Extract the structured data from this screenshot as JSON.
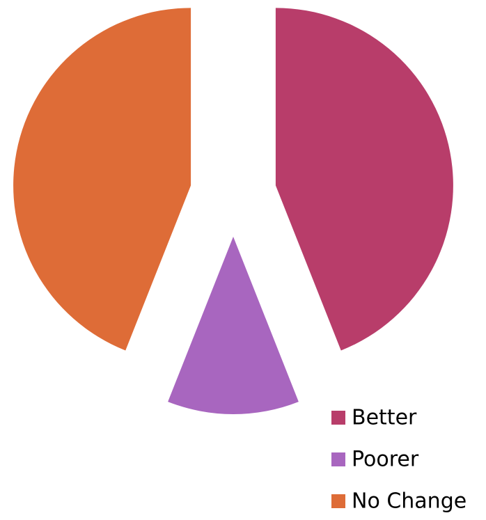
{
  "chart_data": {
    "type": "pie",
    "categories": [
      "Better",
      "Poorer",
      "No Change"
    ],
    "values": [
      44,
      12,
      44
    ],
    "colors": [
      "#b83d6a",
      "#a866bf",
      "#de6c37"
    ],
    "legend": "bottom-right"
  }
}
